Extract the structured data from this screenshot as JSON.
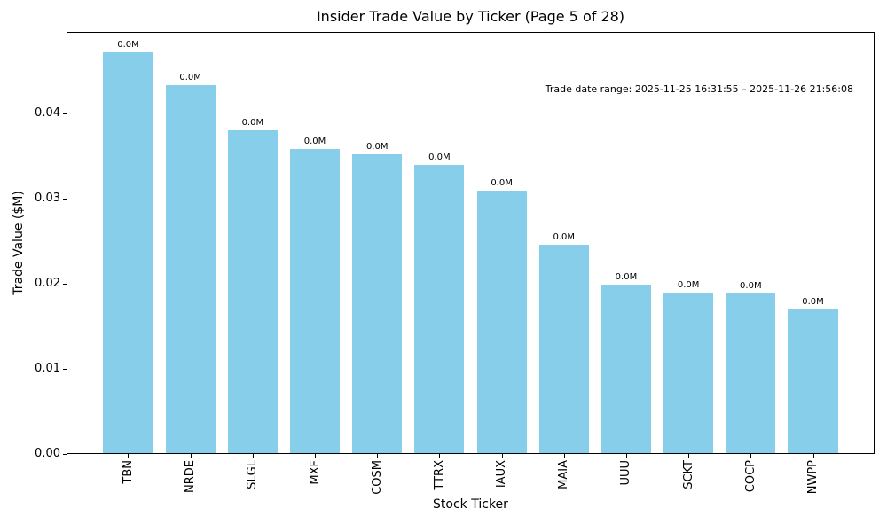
{
  "figure": {
    "background": "#ffffff"
  },
  "chart_data": {
    "type": "bar",
    "title": "Insider Trade Value by Ticker (Page 5 of 28)",
    "xlabel": "Stock Ticker",
    "ylabel": "Trade Value ($M)",
    "annotation": "Trade date range: 2025-11-25 16:31:55 – 2025-11-26 21:56:08",
    "categories": [
      "TBN",
      "NRDE",
      "SLGL",
      "MXF",
      "COSM",
      "TTRX",
      "IAUX",
      "MAIA",
      "UUU",
      "SCKT",
      "COCP",
      "NWPP"
    ],
    "values": [
      0.0472,
      0.0433,
      0.038,
      0.0358,
      0.0352,
      0.034,
      0.0309,
      0.0246,
      0.0199,
      0.019,
      0.0189,
      0.017
    ],
    "bar_labels": [
      "0.0M",
      "0.0M",
      "0.0M",
      "0.0M",
      "0.0M",
      "0.0M",
      "0.0M",
      "0.0M",
      "0.0M",
      "0.0M",
      "0.0M",
      "0.0M"
    ],
    "yticks": {
      "values": [
        0,
        0.01,
        0.02,
        0.03,
        0.04
      ],
      "labels": [
        "0.00",
        "0.01",
        "0.02",
        "0.03",
        "0.04"
      ]
    },
    "ylim": [
      0,
      0.0496
    ],
    "bar_color": "#87CEEB",
    "grid": false,
    "legend_position": "none"
  }
}
